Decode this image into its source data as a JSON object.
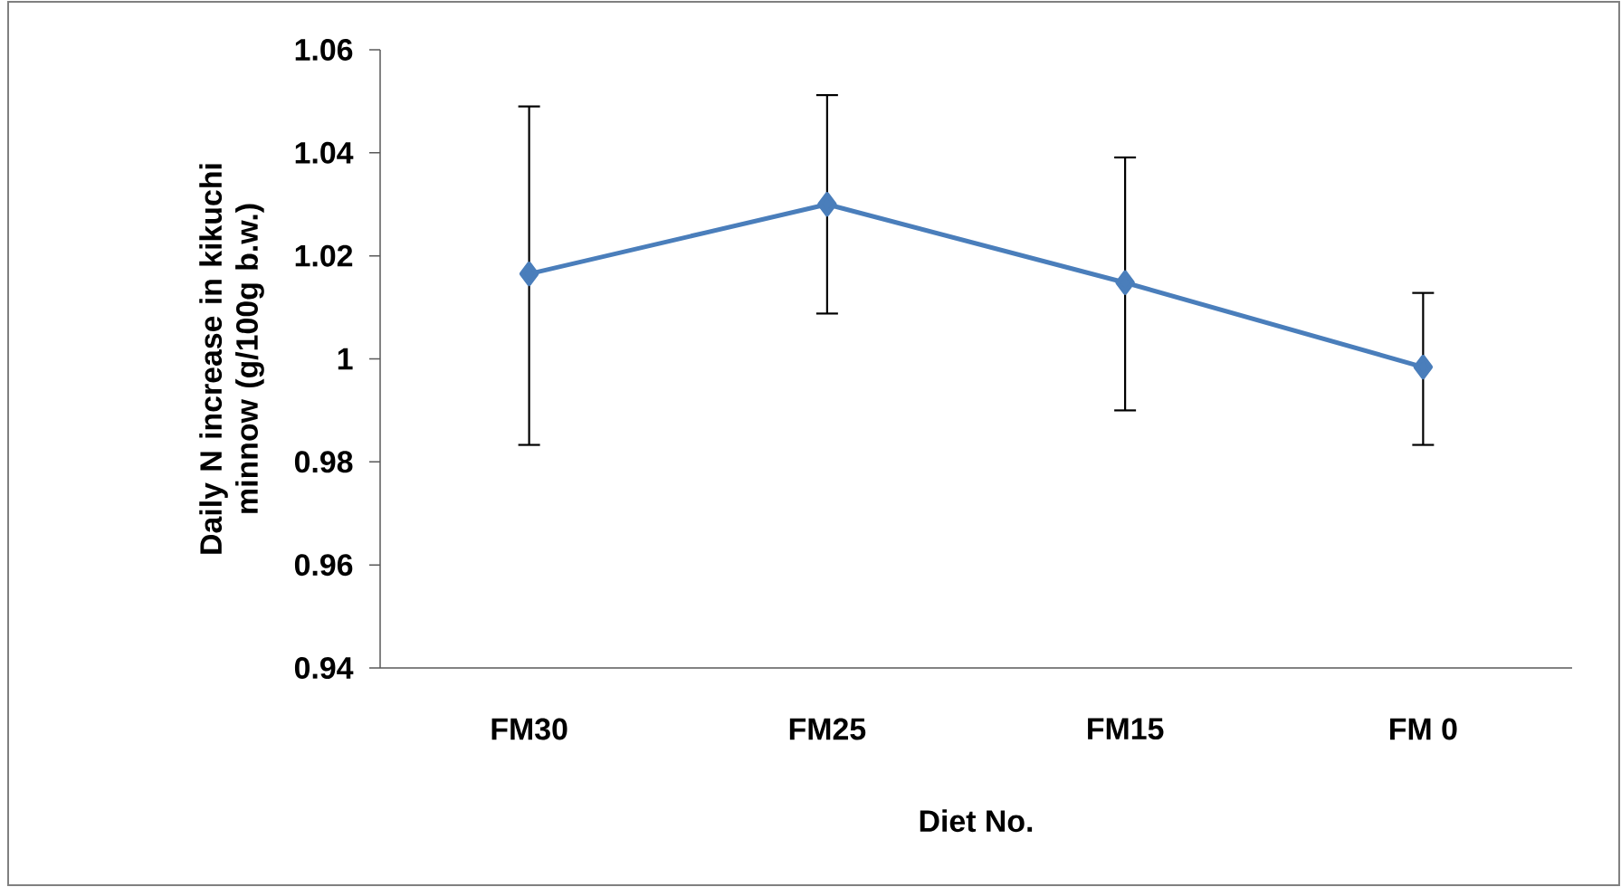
{
  "chart_data": {
    "type": "line",
    "xlabel": "Diet No.",
    "ylabel": "Daily N increase in kikuchi minnow (g/100g b.w.)",
    "categories": [
      "FM30",
      "FM25",
      "FM15",
      "FM 0"
    ],
    "series": [
      {
        "color": "#4a7ebb",
        "values": [
          1.0165,
          1.03,
          1.0148,
          0.9984
        ],
        "errors": [
          [
            0.9833,
            1.049
          ],
          [
            1.0088,
            1.0512
          ],
          [
            0.99,
            1.0391
          ],
          [
            0.9833,
            1.0128
          ]
        ]
      }
    ],
    "ylim": [
      0.94,
      1.06
    ],
    "yticks": [
      0.94,
      0.96,
      0.98,
      1,
      1.02,
      1.04,
      1.06
    ],
    "marker": "diamond",
    "line_style": "solid"
  }
}
